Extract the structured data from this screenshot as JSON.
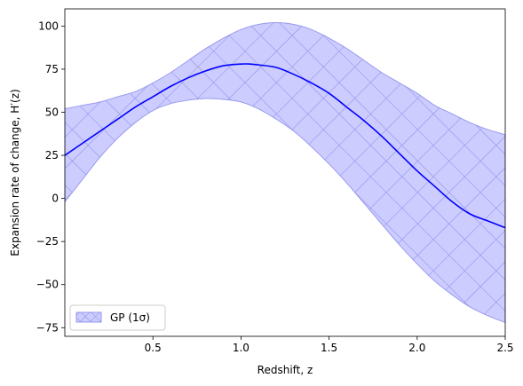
{
  "chart_data": {
    "type": "line",
    "xlabel": "Redshift, z",
    "ylabel": "Expansion rate of change, H′(z)",
    "xlim": [
      0.0,
      2.5
    ],
    "ylim": [
      -80,
      110
    ],
    "xticks": [
      0.5,
      1.0,
      1.5,
      2.0,
      2.5
    ],
    "xtick_labels": [
      "0.5",
      "1.0",
      "1.5",
      "2.0",
      "2.5"
    ],
    "yticks": [
      -75,
      -50,
      -25,
      0,
      25,
      50,
      75,
      100
    ],
    "ytick_labels": [
      "−75",
      "−50",
      "−25",
      "0",
      "25",
      "50",
      "75",
      "100"
    ],
    "grid": false,
    "legend": {
      "position": "lower-left",
      "entries": [
        "GP (1σ)"
      ]
    },
    "colors": {
      "line": "#0000ff",
      "band_fill": "#ccccff",
      "band_edge": "#9999ee",
      "hatch": "#8a8ae6"
    },
    "series": [
      {
        "role": "mean",
        "x": [
          0.0,
          0.1,
          0.2,
          0.3,
          0.4,
          0.5,
          0.6,
          0.7,
          0.8,
          0.9,
          1.0,
          1.05,
          1.1,
          1.2,
          1.3,
          1.4,
          1.5,
          1.6,
          1.7,
          1.8,
          1.9,
          2.0,
          2.1,
          2.2,
          2.3,
          2.4,
          2.5
        ],
        "y": [
          25,
          32,
          39,
          46,
          53,
          59,
          65,
          70,
          74,
          77,
          78,
          78,
          77.5,
          76,
          72,
          67,
          61,
          53,
          45,
          36,
          26,
          16,
          7,
          -2,
          -9,
          -13,
          -17
        ]
      },
      {
        "role": "upper",
        "name": "GP (1σ)",
        "x": [
          0.0,
          0.1,
          0.2,
          0.3,
          0.4,
          0.5,
          0.6,
          0.7,
          0.8,
          0.9,
          1.0,
          1.1,
          1.2,
          1.3,
          1.4,
          1.5,
          1.6,
          1.7,
          1.8,
          1.9,
          2.0,
          2.1,
          2.2,
          2.3,
          2.4,
          2.5
        ],
        "y": [
          52,
          54,
          56,
          59,
          62,
          67,
          73,
          80,
          87,
          93,
          98,
          101,
          102,
          101,
          98,
          93,
          87,
          80,
          73,
          67,
          61,
          54,
          49,
          44,
          40,
          37
        ]
      },
      {
        "role": "lower",
        "x": [
          0.0,
          0.1,
          0.2,
          0.3,
          0.4,
          0.5,
          0.6,
          0.7,
          0.8,
          0.9,
          1.0,
          1.1,
          1.2,
          1.3,
          1.4,
          1.5,
          1.6,
          1.7,
          1.8,
          1.9,
          2.0,
          2.1,
          2.2,
          2.3,
          2.4,
          2.5
        ],
        "y": [
          -2,
          11,
          24,
          35,
          44,
          51,
          55,
          57,
          58,
          57.5,
          56,
          52,
          46,
          39,
          30,
          20,
          9,
          -3,
          -15,
          -27,
          -38,
          -48,
          -56,
          -63,
          -68,
          -72
        ]
      }
    ]
  }
}
